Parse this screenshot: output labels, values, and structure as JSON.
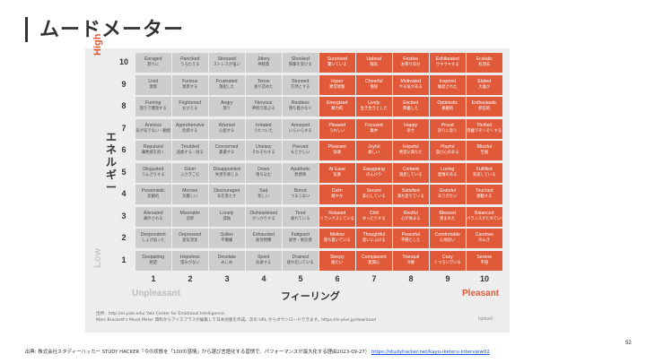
{
  "slide": {
    "title": "ムードメーター",
    "page_number": "52",
    "footer_text": "出典: 株式会社スタディーハッカー STUDY HACKER「今の状態を「100の感情」から選び言語化する習慣で、パフォーマンスが最大化する理由2023-09-27）",
    "footer_link": "https://studyhacker.net/kayo-iketeru-interview02"
  },
  "mood_meter": {
    "high_label": "High",
    "low_label": "Low",
    "energy_label": "エネルギー",
    "unpleasant_label": "Unpleasant",
    "pleasant_label": "Pleasant",
    "feeling_label": "フィーリング",
    "source_line1": "出所：http://ei.yale.edu/ Yale Center for Emotional Intelligence.",
    "source_line2": "Marc Brackett's Mood Meter 資料からアイズプラスが編集して日本語版を作成。次の URL からダウンロードできます。https://is-plus.jp/download",
    "brand": "Isplus©",
    "colors": {
      "unpleasant_cell": "#cdcdcd",
      "pleasant_cell": "#e05a3a",
      "high": "#e05a3a",
      "low": "#c8c8c8"
    },
    "y_numbers": [
      "10",
      "9",
      "8",
      "7",
      "6",
      "5",
      "4",
      "3",
      "2",
      "1"
    ],
    "x_numbers": [
      "1",
      "2",
      "3",
      "4",
      "5",
      "6",
      "7",
      "8",
      "9",
      "10"
    ],
    "rows": [
      [
        [
          "Enraged",
          "怒りに"
        ],
        [
          "Panicked",
          "うろたえる"
        ],
        [
          "Stressed",
          "ストレスが強い"
        ],
        [
          "Jittery",
          "神経質"
        ],
        [
          "Shocked",
          "衝撃を受ける"
        ],
        [
          "Surprised",
          "驚いている"
        ],
        [
          "Upbeat",
          "陽気"
        ],
        [
          "Festive",
          "お祭り気分"
        ],
        [
          "Exhilarated",
          "ウキウキする"
        ],
        [
          "Ecstatic",
          "有頂天"
        ]
      ],
      [
        [
          "Livid",
          "激怒"
        ],
        [
          "Furious",
          "激怒する"
        ],
        [
          "Frustrated",
          "落胆した"
        ],
        [
          "Tense",
          "張り詰めた"
        ],
        [
          "Stunned",
          "茫然とする"
        ],
        [
          "Hyper",
          "異常状態"
        ],
        [
          "Cheerful",
          "愉快"
        ],
        [
          "Motivated",
          "やる気がある"
        ],
        [
          "Inspired",
          "触発された"
        ],
        [
          "Elated",
          "大喜び"
        ]
      ],
      [
        [
          "Fuming",
          "怒りで爆発する"
        ],
        [
          "Frightened",
          "おびえる"
        ],
        [
          "Angry",
          "怒り"
        ],
        [
          "Nervous",
          "神経が高ぶる"
        ],
        [
          "Restless",
          "落ち着かない"
        ],
        [
          "Energized",
          "精力的"
        ],
        [
          "Lively",
          "生き生きとした"
        ],
        [
          "Excited",
          "興奮した"
        ],
        [
          "Optimistic",
          "楽観的"
        ],
        [
          "Enthusiastic",
          "熱狂的"
        ]
      ],
      [
        [
          "Anxious",
          "気が気でない・動揺"
        ],
        [
          "Apprehensive",
          "危惧する"
        ],
        [
          "Worried",
          "心配する"
        ],
        [
          "Irritated",
          "うわついた"
        ],
        [
          "Annoyed",
          "いらいらする"
        ],
        [
          "Pleased",
          "うれしい"
        ],
        [
          "Focused",
          "集中"
        ],
        [
          "Happy",
          "幸せ"
        ],
        [
          "Proud",
          "誇りに思う"
        ],
        [
          "Thrilled",
          "興奮でぞくぞくする"
        ]
      ],
      [
        [
          "Repulsed",
          "嫌悪感を抱く"
        ],
        [
          "Troubled",
          "迷惑する・困る"
        ],
        [
          "Concerned",
          "憂慮する"
        ],
        [
          "Uneasy",
          "そわそわする"
        ],
        [
          "Peeved",
          "もどかしい"
        ],
        [
          "Pleasant",
          "快適"
        ],
        [
          "Joyful",
          "楽しい"
        ],
        [
          "Hopeful",
          "希望に満ちた"
        ],
        [
          "Playful",
          "遊び心のある"
        ],
        [
          "Blissful",
          "至福"
        ]
      ],
      [
        [
          "Disgusted",
          "うんざりする"
        ],
        [
          "Glum",
          "ふさぎこむ"
        ],
        [
          "Disappointed",
          "失望を感じる"
        ],
        [
          "Down",
          "落ち込む"
        ],
        [
          "Apathetic",
          "無感情"
        ],
        [
          "At Ease",
          "気楽"
        ],
        [
          "Easygoing",
          "のんびり"
        ],
        [
          "Content",
          "満足している"
        ],
        [
          "Loving",
          "愛情のある"
        ],
        [
          "Fulfilled",
          "充実している"
        ]
      ],
      [
        [
          "Pessimistic",
          "悲観的"
        ],
        [
          "Morose",
          "気難しい"
        ],
        [
          "Discouraged",
          "気を落とす"
        ],
        [
          "Sad",
          "悲しい"
        ],
        [
          "Bored",
          "つまらない"
        ],
        [
          "Calm",
          "穏やか"
        ],
        [
          "Secure",
          "安心している"
        ],
        [
          "Satisfied",
          "満ち足りている"
        ],
        [
          "Grateful",
          "ありがたい"
        ],
        [
          "Touched",
          "感動する"
        ]
      ],
      [
        [
          "Alienated",
          "疎外される"
        ],
        [
          "Miserable",
          "悲惨"
        ],
        [
          "Lonely",
          "孤独"
        ],
        [
          "Disheartened",
          "がっかりする"
        ],
        [
          "Tired",
          "疲れている"
        ],
        [
          "Relaxed",
          "リラックスしている"
        ],
        [
          "Chill",
          "ゆったりする"
        ],
        [
          "Restful",
          "心が休まる"
        ],
        [
          "Blessed",
          "恵まれた"
        ],
        [
          "Balanced",
          "バランスがとれている"
        ]
      ],
      [
        [
          "Despondent",
          "しょげ返った"
        ],
        [
          "Depressed",
          "意気消沈"
        ],
        [
          "Sullen",
          "不機嫌"
        ],
        [
          "Exhausted",
          "疲労困憊"
        ],
        [
          "Fatigued",
          "疲労・倦怠感"
        ],
        [
          "Mellow",
          "落ち着いている"
        ],
        [
          "Thoughtful",
          "思いにふける"
        ],
        [
          "Peaceful",
          "平穏とした"
        ],
        [
          "Comfortable",
          "心地良い"
        ],
        [
          "Carefree",
          "のんき"
        ]
      ],
      [
        [
          "Despairing",
          "絶望"
        ],
        [
          "Hopeless",
          "望みがない"
        ],
        [
          "Desolate",
          "みじめ"
        ],
        [
          "Spent",
          "気疲する"
        ],
        [
          "Drained",
          "疲れ切っている"
        ],
        [
          "Sleepy",
          "眠たい"
        ],
        [
          "Complacent",
          "無関心"
        ],
        [
          "Tranquil",
          "冷静"
        ],
        [
          "Cozy",
          "くつろいでいる"
        ],
        [
          "Serene",
          "平穏"
        ]
      ]
    ]
  }
}
